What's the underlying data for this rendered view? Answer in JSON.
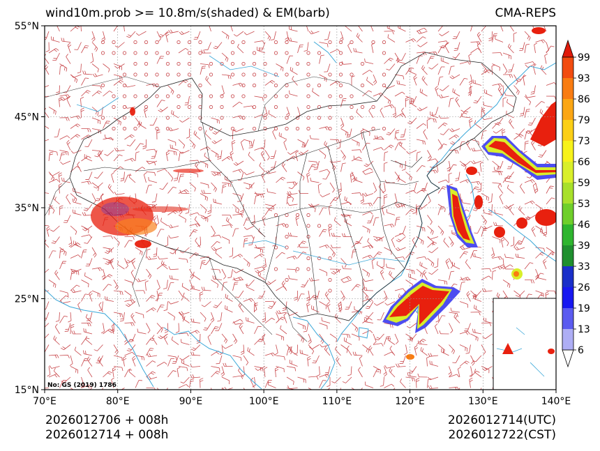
{
  "header": {
    "title": "wind10m.prob >= 10.8m/s(shaded) & EM(barb)",
    "source": "CMA-REPS"
  },
  "map": {
    "lat_labels": [
      "55°N",
      "45°N",
      "35°N",
      "25°N",
      "15°N"
    ],
    "lon_labels": [
      "70°E",
      "80°E",
      "90°E",
      "100°E",
      "110°E",
      "120°E",
      "130°E",
      "140°E"
    ],
    "note": "No: GS (2019) 1786"
  },
  "colorbar": {
    "levels": [
      "6",
      "13",
      "19",
      "26",
      "33",
      "39",
      "46",
      "53",
      "59",
      "66",
      "73",
      "79",
      "86",
      "93",
      "99"
    ],
    "colors": [
      "#aeaef5",
      "#5b5bf0",
      "#1818f0",
      "#1a2fc9",
      "#1f8f2e",
      "#2eb52e",
      "#6fcf2a",
      "#a8e02a",
      "#d9ef2a",
      "#f7f21a",
      "#fbcf16",
      "#fba614",
      "#f97c12",
      "#f24c10",
      "#e8200e"
    ],
    "under_color": "#ffffff",
    "over_color": "#e01a0a"
  },
  "footer": {
    "init_utc": "2026012706  +  008h",
    "init_cst": "2026012714  +  008h",
    "valid_utc": "2026012714(UTC)",
    "valid_cst": "2026012722(CST)"
  }
}
